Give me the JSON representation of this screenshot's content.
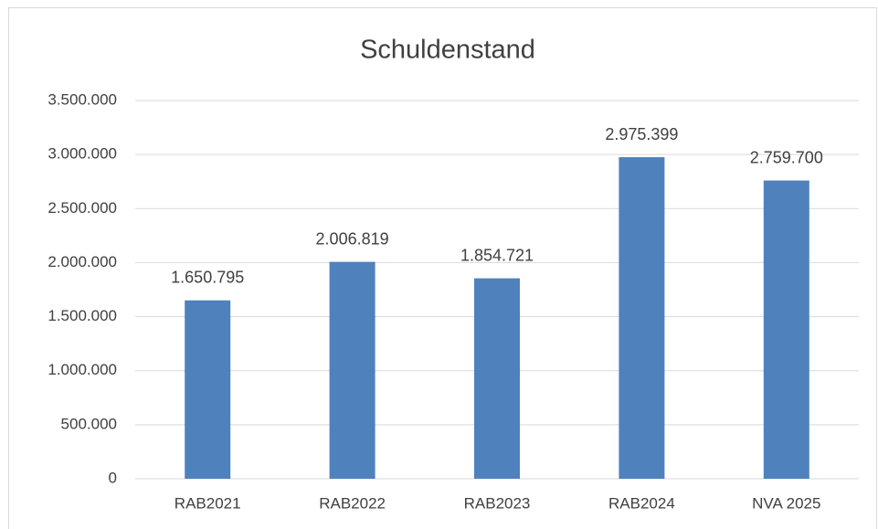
{
  "chart_data": {
    "type": "bar",
    "title": "Schuldenstand",
    "categories": [
      "RAB2021",
      "RAB2022",
      "RAB2023",
      "RAB2024",
      "NVA 2025"
    ],
    "values": [
      1650795,
      2006819,
      1854721,
      2975399,
      2759700
    ],
    "value_labels": [
      "1.650.795",
      "2.006.819",
      "1.854.721",
      "2.975.399",
      "2.759.700"
    ],
    "color": "#4f81bd",
    "ylim": [
      0,
      3500000
    ],
    "yticks": [
      0,
      {
        "value": 500000,
        "label": "500.000"
      },
      {
        "value": 1000000,
        "label": "1.000.000"
      },
      {
        "value": 1500000,
        "label": "1.500.000"
      },
      {
        "value": 2000000,
        "label": "2.000.000"
      },
      {
        "value": 2500000,
        "label": "2.500.000"
      },
      {
        "value": 3000000,
        "label": "3.000.000"
      },
      {
        "value": 3500000,
        "label": "3.500.000"
      }
    ],
    "grid": true
  }
}
